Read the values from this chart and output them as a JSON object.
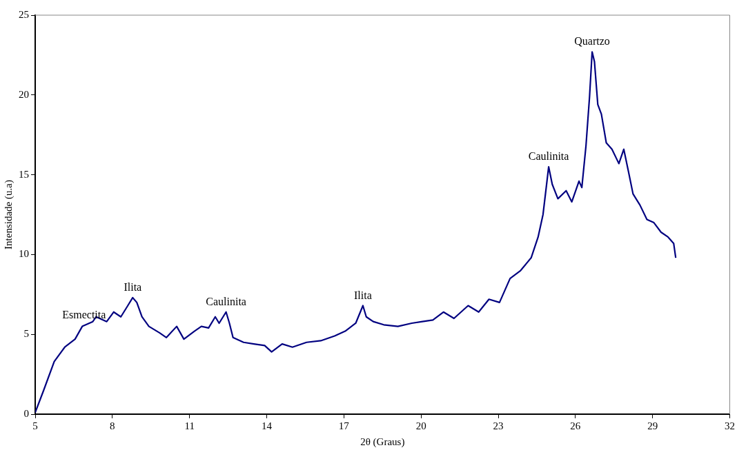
{
  "chart_data": {
    "type": "line",
    "xlabel": "2θ (Graus)",
    "ylabel": "Intensidade (u.a)",
    "xlim": [
      5,
      32
    ],
    "xticks": [
      5,
      8,
      11,
      14,
      17,
      20,
      23,
      26,
      29,
      32
    ],
    "ylim": [
      0,
      25
    ],
    "yticks": [
      0,
      5,
      10,
      15,
      20,
      25
    ],
    "grid": false,
    "legend": false,
    "marker": "none",
    "line_style": "solid",
    "series": [
      {
        "color": "#000080",
        "x": [
          5,
          5.33,
          5.74,
          6.15,
          6.55,
          6.83,
          7.24,
          7.37,
          7.78,
          8.05,
          8.33,
          8.6,
          8.79,
          8.95,
          9.15,
          9.42,
          9.83,
          10.1,
          10.5,
          10.78,
          11.19,
          11.46,
          11.74,
          12.0,
          12.15,
          12.42,
          12.55,
          12.69,
          13.1,
          13.5,
          13.92,
          14.19,
          14.6,
          15.0,
          15.55,
          16.1,
          16.64,
          17.05,
          17.46,
          17.74,
          17.87,
          18.14,
          18.55,
          19.1,
          19.64,
          20.05,
          20.46,
          20.87,
          21.28,
          21.83,
          22.24,
          22.64,
          23.05,
          23.46,
          23.87,
          24.28,
          24.55,
          24.74,
          24.88,
          24.96,
          25.1,
          25.32,
          25.64,
          25.86,
          26.14,
          26.25,
          26.41,
          26.55,
          26.65,
          26.74,
          26.87,
          27.01,
          27.2,
          27.42,
          27.69,
          27.88,
          28.05,
          28.24,
          28.51,
          28.78,
          29.05,
          29.33,
          29.6,
          29.82,
          29.9
        ],
        "values": [
          0.1,
          1.5,
          3.3,
          4.2,
          4.7,
          5.5,
          5.8,
          6.1,
          5.8,
          6.4,
          6.1,
          6.8,
          7.3,
          7.0,
          6.1,
          5.5,
          5.1,
          4.8,
          5.5,
          4.7,
          5.2,
          5.5,
          5.4,
          6.1,
          5.7,
          6.4,
          5.7,
          4.8,
          4.5,
          4.4,
          4.3,
          3.9,
          4.4,
          4.2,
          4.5,
          4.6,
          4.9,
          5.2,
          5.7,
          6.8,
          6.1,
          5.8,
          5.6,
          5.5,
          5.7,
          5.8,
          5.9,
          6.4,
          6.0,
          6.8,
          6.4,
          7.2,
          7.0,
          8.5,
          9.0,
          9.8,
          11.1,
          12.5,
          14.4,
          15.5,
          14.4,
          13.5,
          14.0,
          13.3,
          14.6,
          14.2,
          16.8,
          19.9,
          22.7,
          22.1,
          19.4,
          18.8,
          17.0,
          16.6,
          15.7,
          16.6,
          15.3,
          13.8,
          13.1,
          12.2,
          12.0,
          11.4,
          11.1,
          10.7,
          9.8
        ]
      }
    ],
    "annotations": [
      {
        "text": "Esmectita",
        "x": 6.9,
        "y": 5.6
      },
      {
        "text": "Ilita",
        "x": 8.79,
        "y": 7.3
      },
      {
        "text": "Caulinita",
        "x": 12.42,
        "y": 6.4
      },
      {
        "text": "Ilita",
        "x": 17.74,
        "y": 6.8
      },
      {
        "text": "Caulinita",
        "x": 24.96,
        "y": 15.5
      },
      {
        "text": "Quartzo",
        "x": 26.65,
        "y": 22.7
      }
    ]
  }
}
